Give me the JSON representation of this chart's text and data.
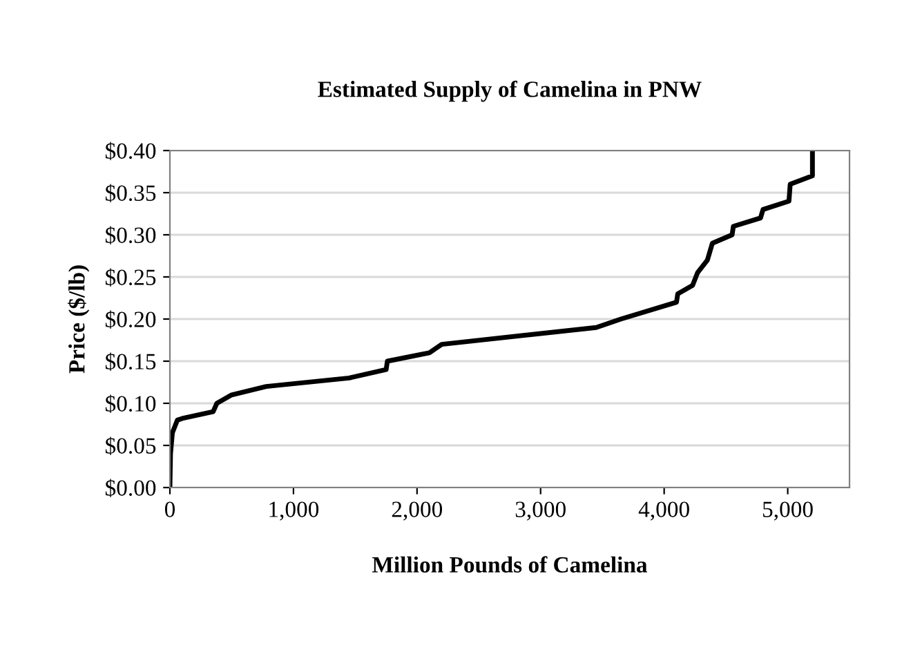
{
  "chart_data": {
    "type": "line",
    "title": "Estimated Supply of Camelina in PNW",
    "xlabel": "Million Pounds of Camelina",
    "ylabel": "Price ($/lb)",
    "series": [
      {
        "color": "#000000",
        "x": [
          0,
          5,
          20,
          60,
          100,
          350,
          380,
          500,
          780,
          1450,
          1750,
          1760,
          2100,
          2200,
          3450,
          3650,
          4100,
          4110,
          4230,
          4270,
          4350,
          4390,
          4550,
          4560,
          4780,
          4800,
          5010,
          5020,
          5200,
          5200
        ],
        "values": [
          0,
          0.04,
          0.065,
          0.08,
          0.082,
          0.09,
          0.1,
          0.11,
          0.12,
          0.13,
          0.14,
          0.15,
          0.16,
          0.17,
          0.19,
          0.2,
          0.22,
          0.23,
          0.24,
          0.255,
          0.27,
          0.29,
          0.3,
          0.31,
          0.32,
          0.33,
          0.34,
          0.36,
          0.37,
          0.4
        ]
      }
    ],
    "xlim": [
      0,
      5500
    ],
    "xticks": [
      {
        "value": 0,
        "label": "0"
      },
      {
        "value": 1000,
        "label": "1,000"
      },
      {
        "value": 2000,
        "label": "2,000"
      },
      {
        "value": 3000,
        "label": "3,000"
      },
      {
        "value": 4000,
        "label": "4,000"
      },
      {
        "value": 5000,
        "label": "5,000"
      }
    ],
    "ylim": [
      0,
      0.4
    ],
    "yticks": [
      {
        "value": 0,
        "label": "$0.00"
      },
      {
        "value": 0.05,
        "label": "$0.05"
      },
      {
        "value": 0.1,
        "label": "$0.10"
      },
      {
        "value": 0.15,
        "label": "$0.15"
      },
      {
        "value": 0.2,
        "label": "$0.20"
      },
      {
        "value": 0.25,
        "label": "$0.25"
      },
      {
        "value": 0.3,
        "label": "$0.30"
      },
      {
        "value": 0.35,
        "label": "$0.35"
      },
      {
        "value": 0.4,
        "label": "$0.40"
      }
    ],
    "grid": "y",
    "legend": false,
    "marker": "none",
    "line_style": "solid"
  }
}
